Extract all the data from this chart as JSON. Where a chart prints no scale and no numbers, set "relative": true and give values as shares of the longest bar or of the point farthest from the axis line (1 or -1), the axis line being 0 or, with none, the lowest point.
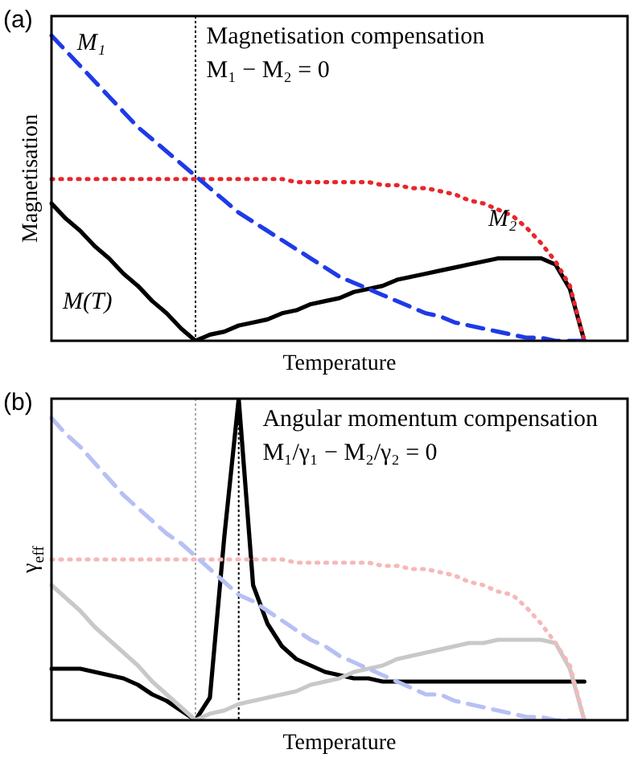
{
  "chart_data": [
    {
      "type": "line",
      "title": "(a)",
      "xlabel": "Temperature",
      "ylabel": "Magnetisation",
      "relative": true,
      "marker": "none",
      "categories": [
        null,
        null,
        null,
        null,
        null,
        null,
        null,
        null,
        null,
        null,
        null,
        null,
        null,
        null,
        null,
        null,
        null,
        null,
        null,
        null,
        null,
        null,
        null,
        null,
        null,
        null,
        null,
        null,
        null,
        null,
        null,
        null,
        null,
        null,
        null,
        null,
        null,
        null,
        null,
        null,
        null
      ],
      "series": [
        {
          "name": "M₁",
          "color": "#1f3ae8",
          "line_style": "dashed",
          "values": [
            1,
            0.95,
            0.9,
            0.85,
            0.8,
            0.75,
            0.7,
            0.66,
            0.62,
            0.58,
            0.54,
            0.5,
            0.46,
            0.42,
            0.39,
            0.36,
            0.33,
            0.3,
            0.27,
            0.24,
            0.21,
            0.19,
            0.17,
            0.15,
            0.13,
            0.11,
            0.09,
            0.08,
            0.06,
            0.05,
            0.04,
            0.03,
            0.02,
            0.01,
            0.01,
            0,
            0,
            0,
            null,
            null,
            null
          ]
        },
        {
          "name": "M₂",
          "color": "#e8262a",
          "line_style": "dotted",
          "values": [
            0.53,
            0.53,
            0.53,
            0.53,
            0.53,
            0.53,
            0.53,
            0.53,
            0.53,
            0.53,
            0.53,
            0.53,
            0.53,
            0.53,
            0.53,
            0.53,
            0.53,
            0.52,
            0.52,
            0.52,
            0.52,
            0.52,
            0.52,
            0.51,
            0.51,
            0.5,
            0.5,
            0.49,
            0.48,
            0.46,
            0.45,
            0.43,
            0.41,
            0.37,
            0.32,
            0.26,
            0.18,
            0,
            null,
            null,
            null
          ]
        },
        {
          "name": "M(T)",
          "color": "#000000",
          "line_style": "solid",
          "values": [
            0.45,
            0.4,
            0.36,
            0.31,
            0.27,
            0.22,
            0.18,
            0.13,
            0.09,
            0.04,
            0,
            0.02,
            0.03,
            0.05,
            0.06,
            0.07,
            0.09,
            0.1,
            0.12,
            0.13,
            0.14,
            0.16,
            0.17,
            0.18,
            0.2,
            0.21,
            0.22,
            0.23,
            0.24,
            0.25,
            0.26,
            0.27,
            0.27,
            0.27,
            0.27,
            0.25,
            0.17,
            0,
            null,
            null,
            null
          ]
        }
      ],
      "annotations": [
        "Magnetisation compensation",
        "M₁ − M₂ = 0"
      ]
    },
    {
      "type": "line",
      "title": "(b)",
      "xlabel": "Temperature",
      "ylabel": "γ$_{eff}$",
      "relative": true,
      "marker": "none",
      "categories": [
        null,
        null,
        null,
        null,
        null,
        null,
        null,
        null,
        null,
        null,
        null,
        null,
        null,
        null,
        null,
        null,
        null,
        null,
        null,
        null,
        null,
        null,
        null,
        null,
        null,
        null,
        null,
        null,
        null,
        null,
        null,
        null,
        null,
        null,
        null,
        null,
        null,
        null,
        null,
        null,
        null
      ],
      "series": [
        {
          "color": "#b7c0f4",
          "line_style": "dashed",
          "values": [
            0.94,
            0.89,
            0.85,
            0.8,
            0.75,
            0.7,
            0.66,
            0.62,
            0.58,
            0.55,
            0.51,
            0.47,
            0.43,
            0.39,
            0.37,
            0.34,
            0.31,
            0.28,
            0.25,
            0.23,
            0.2,
            0.18,
            0.16,
            0.14,
            0.12,
            0.1,
            0.08,
            0.08,
            0.06,
            0.05,
            0.04,
            0.03,
            0.02,
            0.01,
            0.01,
            0,
            0,
            0,
            null,
            null,
            null
          ]
        },
        {
          "color": "#f6b8b8",
          "line_style": "dotted",
          "values": [
            0.5,
            0.5,
            0.5,
            0.5,
            0.5,
            0.5,
            0.5,
            0.5,
            0.5,
            0.5,
            0.5,
            0.5,
            0.5,
            0.5,
            0.5,
            0.5,
            0.5,
            0.49,
            0.49,
            0.49,
            0.49,
            0.49,
            0.49,
            0.48,
            0.48,
            0.47,
            0.47,
            0.46,
            0.45,
            0.43,
            0.42,
            0.4,
            0.39,
            0.35,
            0.3,
            0.24,
            0.17,
            0,
            null,
            null,
            null
          ]
        },
        {
          "color": "#c8c8c8",
          "line_style": "solid",
          "values": [
            0.42,
            0.38,
            0.34,
            0.29,
            0.25,
            0.21,
            0.17,
            0.12,
            0.08,
            0.04,
            0,
            0.02,
            0.03,
            0.05,
            0.06,
            0.07,
            0.08,
            0.09,
            0.11,
            0.12,
            0.13,
            0.15,
            0.16,
            0.17,
            0.19,
            0.2,
            0.21,
            0.22,
            0.23,
            0.24,
            0.24,
            0.25,
            0.25,
            0.25,
            0.25,
            0.24,
            0.16,
            0,
            null,
            null,
            null
          ]
        },
        {
          "color": "#000000",
          "line_style": "solid",
          "values": [
            0.16,
            0.16,
            0.16,
            0.15,
            0.14,
            0.13,
            0.11,
            0.08,
            0.06,
            0.03,
            0,
            0.07,
            0.57,
            1,
            0.42,
            0.3,
            0.23,
            0.19,
            0.17,
            0.15,
            0.14,
            0.13,
            0.13,
            0.12,
            0.12,
            0.12,
            0.12,
            0.12,
            0.12,
            0.12,
            0.12,
            0.12,
            0.12,
            0.12,
            0.12,
            0.12,
            0.12,
            0.12,
            null,
            null,
            null
          ]
        }
      ],
      "annotations": [
        "Angular momentum compensation",
        "M₁/γ₁ − M₂/γ₂ = 0"
      ]
    }
  ]
}
